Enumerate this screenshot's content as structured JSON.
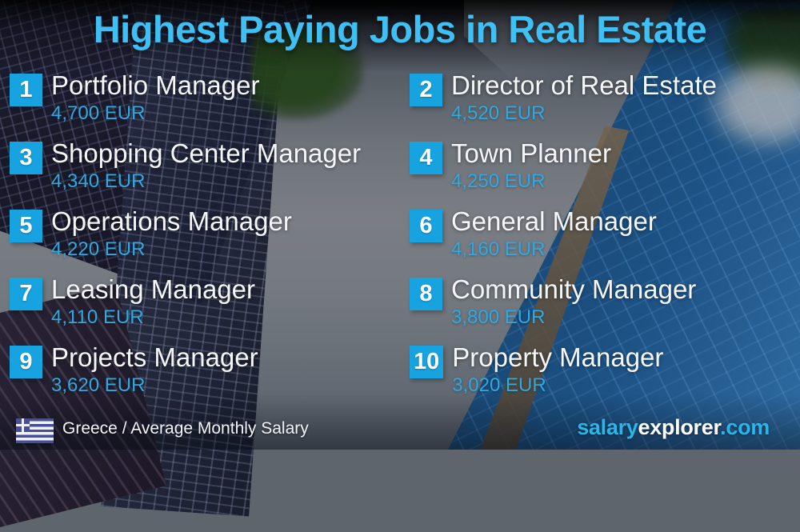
{
  "title": "Highest Paying Jobs in Real Estate",
  "items": [
    {
      "rank": "1",
      "job": "Portfolio Manager",
      "salary": "4,700 EUR"
    },
    {
      "rank": "2",
      "job": "Director of Real Estate",
      "salary": "4,520 EUR"
    },
    {
      "rank": "3",
      "job": "Shopping Center Manager",
      "salary": "4,340 EUR"
    },
    {
      "rank": "4",
      "job": "Town Planner",
      "salary": "4,250 EUR"
    },
    {
      "rank": "5",
      "job": "Operations Manager",
      "salary": "4,220 EUR"
    },
    {
      "rank": "6",
      "job": "General Manager",
      "salary": "4,160 EUR"
    },
    {
      "rank": "7",
      "job": "Leasing Manager",
      "salary": "4,110 EUR"
    },
    {
      "rank": "8",
      "job": "Community Manager",
      "salary": "3,800 EUR"
    },
    {
      "rank": "9",
      "job": "Projects Manager",
      "salary": "3,620 EUR"
    },
    {
      "rank": "10",
      "job": "Property Manager",
      "salary": "3,020 EUR"
    }
  ],
  "chart_data": {
    "type": "table",
    "title": "Highest Paying Jobs in Real Estate",
    "subtitle": "Greece / Average Monthly Salary",
    "unit": "EUR",
    "categories": [
      "Portfolio Manager",
      "Director of Real Estate",
      "Shopping Center Manager",
      "Town Planner",
      "Operations Manager",
      "General Manager",
      "Leasing Manager",
      "Community Manager",
      "Projects Manager",
      "Property Manager"
    ],
    "values": [
      4700,
      4520,
      4340,
      4250,
      4220,
      4160,
      4110,
      3800,
      3620,
      3020
    ]
  },
  "footer": {
    "caption": "Greece / Average Monthly Salary",
    "flag_icon": "greece-flag",
    "brand": {
      "part1": "salary",
      "part2": "explorer",
      "part3": ".com"
    }
  },
  "colors": {
    "accent": "#17a3e0",
    "title_text": "#3ec0f5",
    "salary_text": "#2fa9e2",
    "brand_cyan": "#27b7ed",
    "flag_blue": "#454f9b"
  }
}
